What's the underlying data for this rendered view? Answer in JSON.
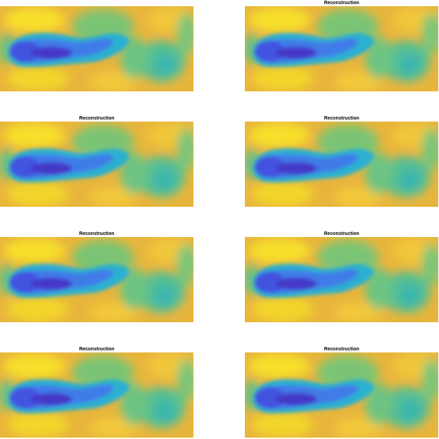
{
  "titles": [
    "Reconstruction",
    "Reconstruction",
    "Reconstruction",
    "Reconstruction",
    "Reconstruction",
    "Reconstruction",
    "Reconstruction"
  ]
}
